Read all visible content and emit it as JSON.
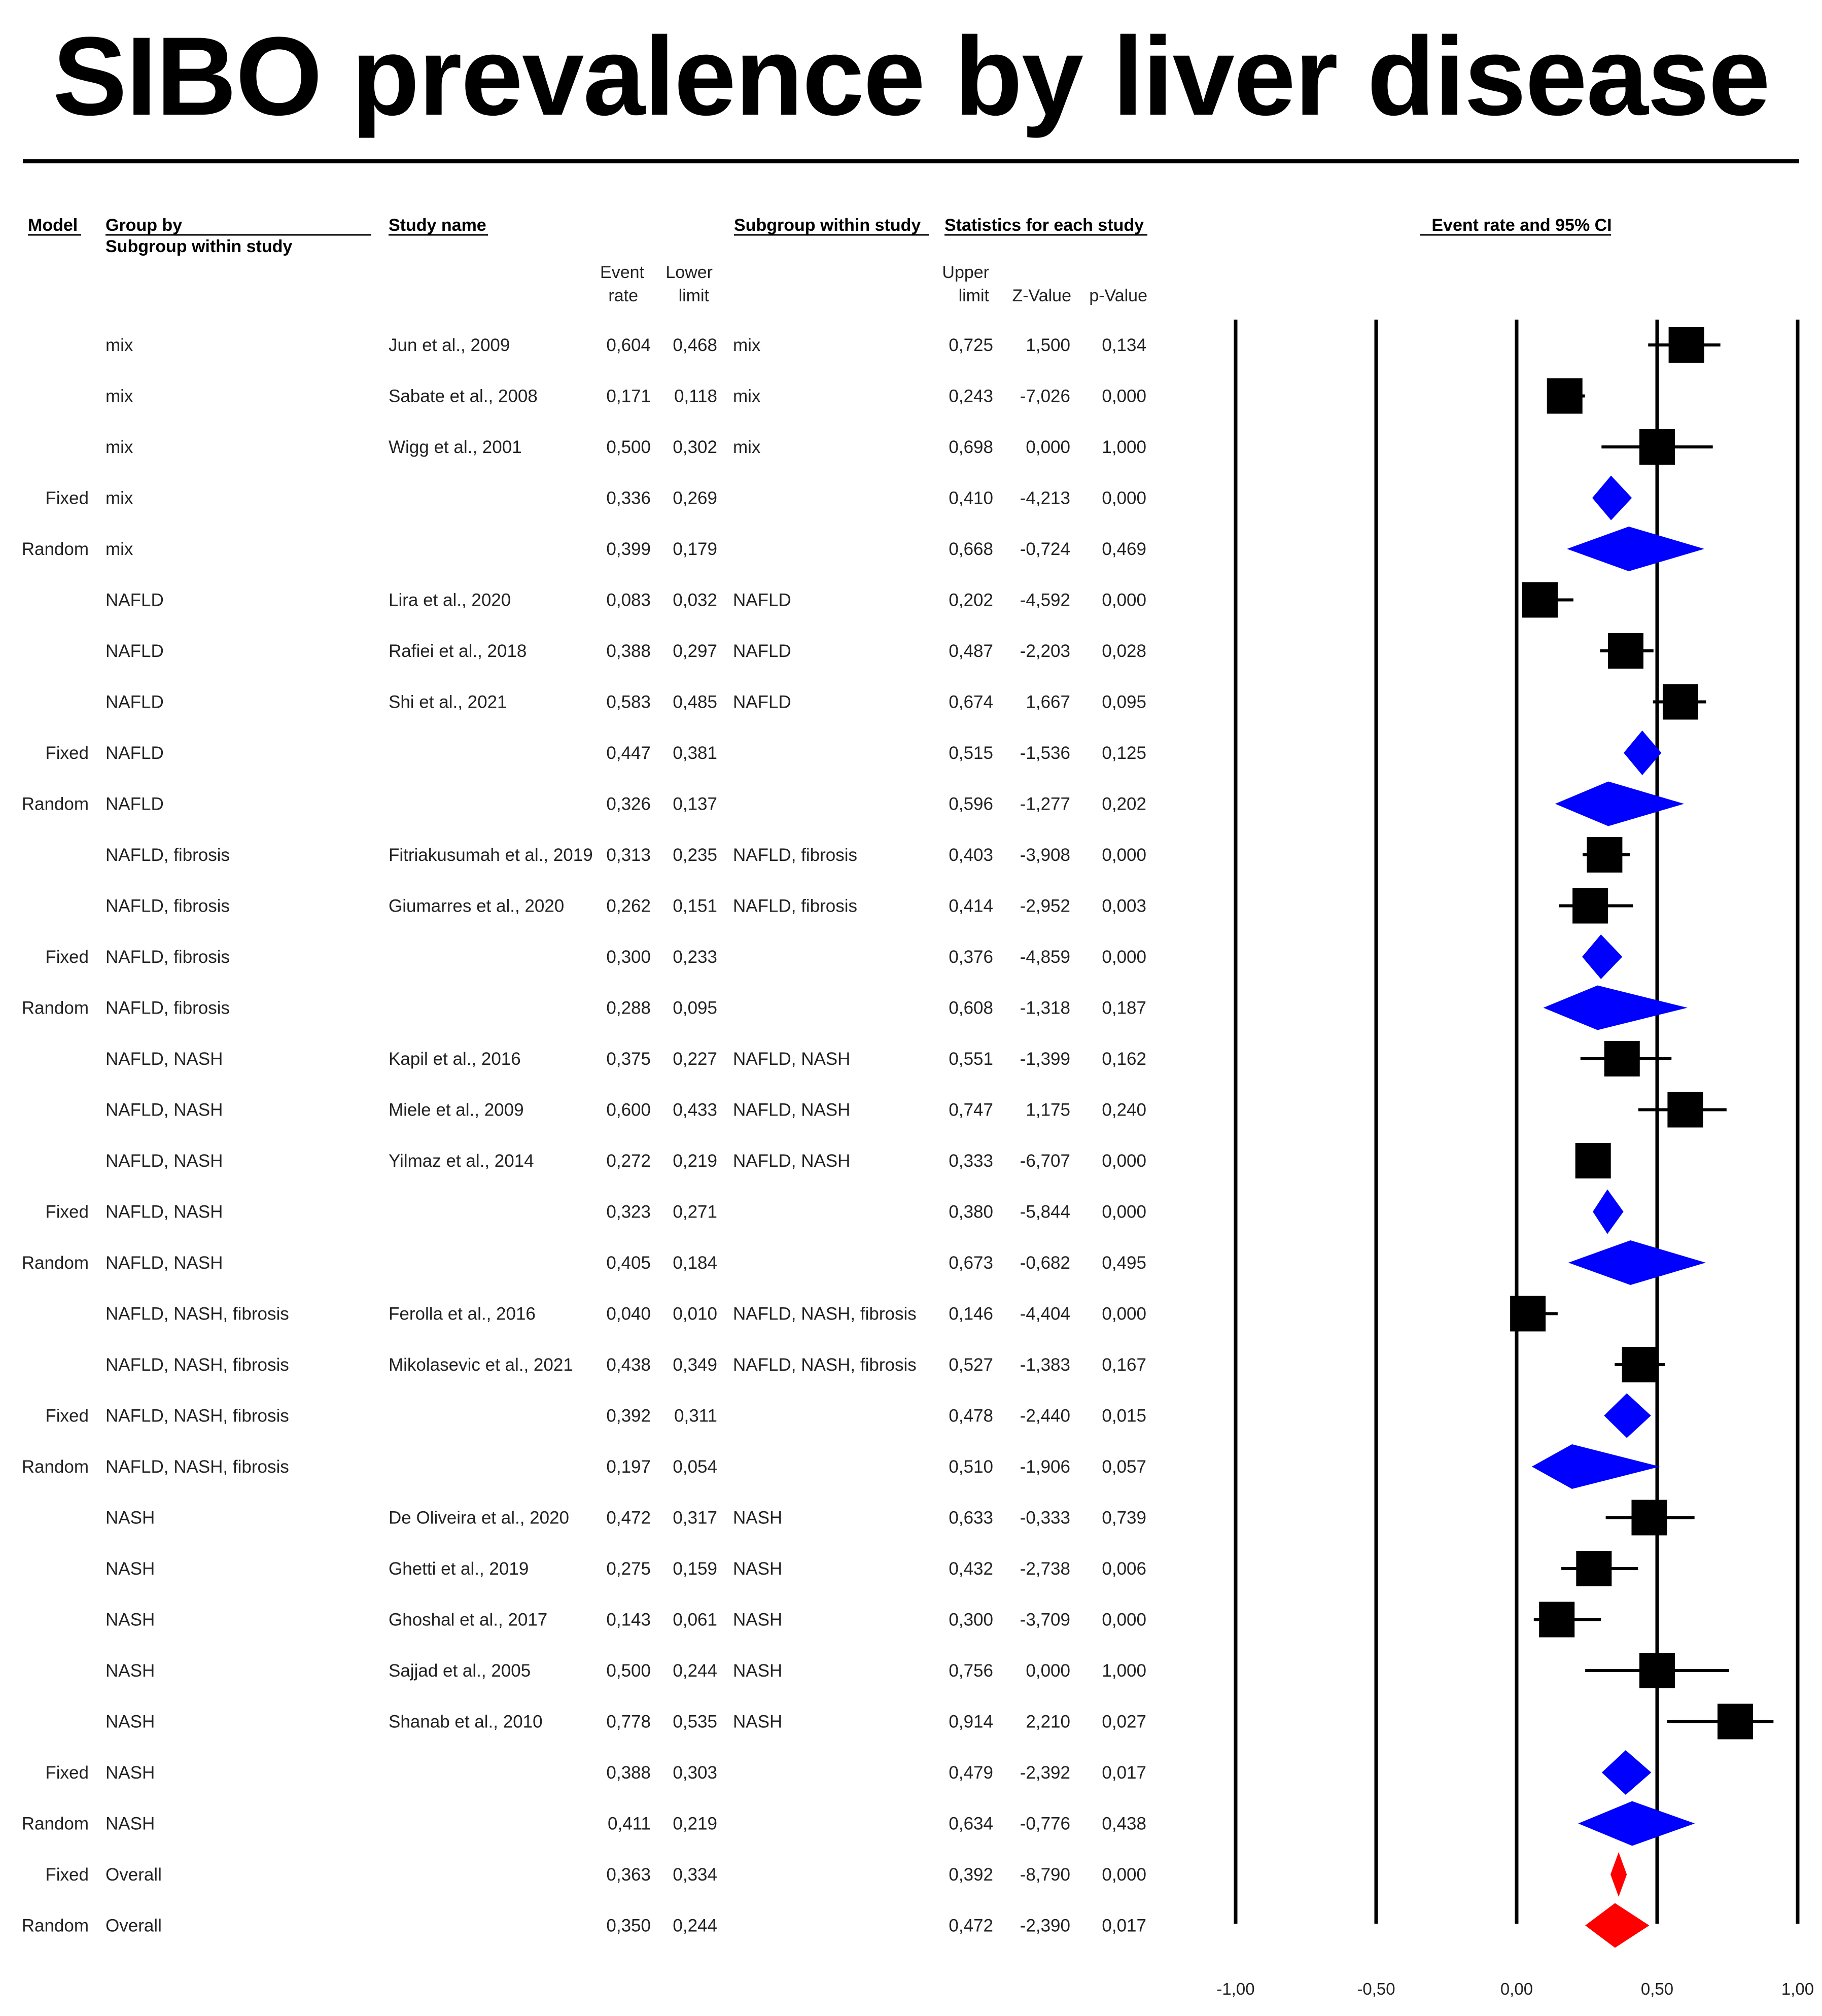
{
  "title": "SIBO prevalence by liver disease",
  "headers": {
    "model": "Model",
    "group_by": "Group by",
    "subgroup_within_study": "Subgroup within study",
    "study_name": "Study name",
    "subgroup_col": "Subgroup within study",
    "statistics": "Statistics for each study",
    "event_rate_ci": "Event rate and 95% CI",
    "event_1": "Event",
    "event_2": "rate",
    "lower_1": "Lower",
    "lower_2": "limit",
    "upper_1": "Upper",
    "upper_2": "limit",
    "zvalue": "Z-Value",
    "pvalue": "p-Value"
  },
  "colors": {
    "study": "#000000",
    "subgroup": "#0000ff",
    "overall": "#ff0000",
    "text": "#222222"
  },
  "chart_data": {
    "type": "forest",
    "title": "SIBO prevalence by liver disease",
    "xlabel": "Event rate and 95% CI",
    "xlim": [
      -1.0,
      1.0
    ],
    "ticks": [
      -1.0,
      -0.5,
      0.0,
      0.5,
      1.0
    ],
    "tick_labels": [
      "-1,00",
      "-0,50",
      "0,00",
      "0,50",
      "1,00"
    ],
    "rows": [
      {
        "model": "",
        "group": "mix",
        "study": "Jun et al., 2009",
        "event": "0,604",
        "lower": "0,468",
        "subgroup": "mix",
        "upper": "0,725",
        "z": "1,500",
        "p": "0,134",
        "kind": "study",
        "est": 0.604,
        "lo": 0.468,
        "hi": 0.725
      },
      {
        "model": "",
        "group": "mix",
        "study": "Sabate et al., 2008",
        "event": "0,171",
        "lower": "0,118",
        "subgroup": "mix",
        "upper": "0,243",
        "z": "-7,026",
        "p": "0,000",
        "kind": "study",
        "est": 0.171,
        "lo": 0.118,
        "hi": 0.243
      },
      {
        "model": "",
        "group": "mix",
        "study": "Wigg et al., 2001",
        "event": "0,500",
        "lower": "0,302",
        "subgroup": "mix",
        "upper": "0,698",
        "z": "0,000",
        "p": "1,000",
        "kind": "study",
        "est": 0.5,
        "lo": 0.302,
        "hi": 0.698
      },
      {
        "model": "Fixed",
        "group": "mix",
        "study": "",
        "event": "0,336",
        "lower": "0,269",
        "subgroup": "",
        "upper": "0,410",
        "z": "-4,213",
        "p": "0,000",
        "kind": "pooled",
        "est": 0.336,
        "lo": 0.269,
        "hi": 0.41
      },
      {
        "model": "Random",
        "group": "mix",
        "study": "",
        "event": "0,399",
        "lower": "0,179",
        "subgroup": "",
        "upper": "0,668",
        "z": "-0,724",
        "p": "0,469",
        "kind": "pooled",
        "est": 0.399,
        "lo": 0.179,
        "hi": 0.668
      },
      {
        "model": "",
        "group": "NAFLD",
        "study": "Lira et al., 2020",
        "event": "0,083",
        "lower": "0,032",
        "subgroup": "NAFLD",
        "upper": "0,202",
        "z": "-4,592",
        "p": "0,000",
        "kind": "study",
        "est": 0.083,
        "lo": 0.032,
        "hi": 0.202
      },
      {
        "model": "",
        "group": "NAFLD",
        "study": "Rafiei et al., 2018",
        "event": "0,388",
        "lower": "0,297",
        "subgroup": "NAFLD",
        "upper": "0,487",
        "z": "-2,203",
        "p": "0,028",
        "kind": "study",
        "est": 0.388,
        "lo": 0.297,
        "hi": 0.487
      },
      {
        "model": "",
        "group": "NAFLD",
        "study": "Shi et al., 2021",
        "event": "0,583",
        "lower": "0,485",
        "subgroup": "NAFLD",
        "upper": "0,674",
        "z": "1,667",
        "p": "0,095",
        "kind": "study",
        "est": 0.583,
        "lo": 0.485,
        "hi": 0.674
      },
      {
        "model": "Fixed",
        "group": "NAFLD",
        "study": "",
        "event": "0,447",
        "lower": "0,381",
        "subgroup": "",
        "upper": "0,515",
        "z": "-1,536",
        "p": "0,125",
        "kind": "pooled",
        "est": 0.447,
        "lo": 0.381,
        "hi": 0.515
      },
      {
        "model": "Random",
        "group": "NAFLD",
        "study": "",
        "event": "0,326",
        "lower": "0,137",
        "subgroup": "",
        "upper": "0,596",
        "z": "-1,277",
        "p": "0,202",
        "kind": "pooled",
        "est": 0.326,
        "lo": 0.137,
        "hi": 0.596
      },
      {
        "model": "",
        "group": "NAFLD, fibrosis",
        "study": "Fitriakusumah et al., 2019",
        "event": "0,313",
        "lower": "0,235",
        "subgroup": "NAFLD, fibrosis",
        "upper": "0,403",
        "z": "-3,908",
        "p": "0,000",
        "kind": "study",
        "est": 0.313,
        "lo": 0.235,
        "hi": 0.403
      },
      {
        "model": "",
        "group": "NAFLD, fibrosis",
        "study": "Giumarres et al., 2020",
        "event": "0,262",
        "lower": "0,151",
        "subgroup": "NAFLD, fibrosis",
        "upper": "0,414",
        "z": "-2,952",
        "p": "0,003",
        "kind": "study",
        "est": 0.262,
        "lo": 0.151,
        "hi": 0.414
      },
      {
        "model": "Fixed",
        "group": "NAFLD, fibrosis",
        "study": "",
        "event": "0,300",
        "lower": "0,233",
        "subgroup": "",
        "upper": "0,376",
        "z": "-4,859",
        "p": "0,000",
        "kind": "pooled",
        "est": 0.3,
        "lo": 0.233,
        "hi": 0.376
      },
      {
        "model": "Random",
        "group": "NAFLD, fibrosis",
        "study": "",
        "event": "0,288",
        "lower": "0,095",
        "subgroup": "",
        "upper": "0,608",
        "z": "-1,318",
        "p": "0,187",
        "kind": "pooled",
        "est": 0.288,
        "lo": 0.095,
        "hi": 0.608
      },
      {
        "model": "",
        "group": "NAFLD, NASH",
        "study": "Kapil et al., 2016",
        "event": "0,375",
        "lower": "0,227",
        "subgroup": "NAFLD, NASH",
        "upper": "0,551",
        "z": "-1,399",
        "p": "0,162",
        "kind": "study",
        "est": 0.375,
        "lo": 0.227,
        "hi": 0.551
      },
      {
        "model": "",
        "group": "NAFLD, NASH",
        "study": "Miele et al., 2009",
        "event": "0,600",
        "lower": "0,433",
        "subgroup": "NAFLD, NASH",
        "upper": "0,747",
        "z": "1,175",
        "p": "0,240",
        "kind": "study",
        "est": 0.6,
        "lo": 0.433,
        "hi": 0.747
      },
      {
        "model": "",
        "group": "NAFLD, NASH",
        "study": "Yilmaz et al., 2014",
        "event": "0,272",
        "lower": "0,219",
        "subgroup": "NAFLD, NASH",
        "upper": "0,333",
        "z": "-6,707",
        "p": "0,000",
        "kind": "study",
        "est": 0.272,
        "lo": 0.219,
        "hi": 0.333
      },
      {
        "model": "Fixed",
        "group": "NAFLD, NASH",
        "study": "",
        "event": "0,323",
        "lower": "0,271",
        "subgroup": "",
        "upper": "0,380",
        "z": "-5,844",
        "p": "0,000",
        "kind": "pooled",
        "est": 0.323,
        "lo": 0.271,
        "hi": 0.38
      },
      {
        "model": "Random",
        "group": "NAFLD, NASH",
        "study": "",
        "event": "0,405",
        "lower": "0,184",
        "subgroup": "",
        "upper": "0,673",
        "z": "-0,682",
        "p": "0,495",
        "kind": "pooled",
        "est": 0.405,
        "lo": 0.184,
        "hi": 0.673
      },
      {
        "model": "",
        "group": "NAFLD, NASH, fibrosis",
        "study": "Ferolla et al., 2016",
        "event": "0,040",
        "lower": "0,010",
        "subgroup": "NAFLD, NASH, fibrosis",
        "upper": "0,146",
        "z": "-4,404",
        "p": "0,000",
        "kind": "study",
        "est": 0.04,
        "lo": 0.01,
        "hi": 0.146
      },
      {
        "model": "",
        "group": "NAFLD, NASH, fibrosis",
        "study": "Mikolasevic et al., 2021",
        "event": "0,438",
        "lower": "0,349",
        "subgroup": "NAFLD, NASH, fibrosis",
        "upper": "0,527",
        "z": "-1,383",
        "p": "0,167",
        "kind": "study",
        "est": 0.438,
        "lo": 0.349,
        "hi": 0.527
      },
      {
        "model": "Fixed",
        "group": "NAFLD, NASH, fibrosis",
        "study": "",
        "event": "0,392",
        "lower": "0,311",
        "subgroup": "",
        "upper": "0,478",
        "z": "-2,440",
        "p": "0,015",
        "kind": "pooled",
        "est": 0.392,
        "lo": 0.311,
        "hi": 0.478
      },
      {
        "model": "Random",
        "group": "NAFLD, NASH, fibrosis",
        "study": "",
        "event": "0,197",
        "lower": "0,054",
        "subgroup": "",
        "upper": "0,510",
        "z": "-1,906",
        "p": "0,057",
        "kind": "pooled",
        "est": 0.197,
        "lo": 0.054,
        "hi": 0.51
      },
      {
        "model": "",
        "group": "NASH",
        "study": "De Oliveira et al., 2020",
        "event": "0,472",
        "lower": "0,317",
        "subgroup": "NASH",
        "upper": "0,633",
        "z": "-0,333",
        "p": "0,739",
        "kind": "study",
        "est": 0.472,
        "lo": 0.317,
        "hi": 0.633
      },
      {
        "model": "",
        "group": "NASH",
        "study": "Ghetti et al., 2019",
        "event": "0,275",
        "lower": "0,159",
        "subgroup": "NASH",
        "upper": "0,432",
        "z": "-2,738",
        "p": "0,006",
        "kind": "study",
        "est": 0.275,
        "lo": 0.159,
        "hi": 0.432
      },
      {
        "model": "",
        "group": "NASH",
        "study": "Ghoshal et al., 2017",
        "event": "0,143",
        "lower": "0,061",
        "subgroup": "NASH",
        "upper": "0,300",
        "z": "-3,709",
        "p": "0,000",
        "kind": "study",
        "est": 0.143,
        "lo": 0.061,
        "hi": 0.3
      },
      {
        "model": "",
        "group": "NASH",
        "study": "Sajjad et al., 2005",
        "event": "0,500",
        "lower": "0,244",
        "subgroup": "NASH",
        "upper": "0,756",
        "z": "0,000",
        "p": "1,000",
        "kind": "study",
        "est": 0.5,
        "lo": 0.244,
        "hi": 0.756
      },
      {
        "model": "",
        "group": "NASH",
        "study": "Shanab et al., 2010",
        "event": "0,778",
        "lower": "0,535",
        "subgroup": "NASH",
        "upper": "0,914",
        "z": "2,210",
        "p": "0,027",
        "kind": "study",
        "est": 0.778,
        "lo": 0.535,
        "hi": 0.914
      },
      {
        "model": "Fixed",
        "group": "NASH",
        "study": "",
        "event": "0,388",
        "lower": "0,303",
        "subgroup": "",
        "upper": "0,479",
        "z": "-2,392",
        "p": "0,017",
        "kind": "pooled",
        "est": 0.388,
        "lo": 0.303,
        "hi": 0.479
      },
      {
        "model": "Random",
        "group": "NASH",
        "study": "",
        "event": "0,411",
        "lower": "0,219",
        "subgroup": "",
        "upper": "0,634",
        "z": "-0,776",
        "p": "0,438",
        "kind": "pooled",
        "est": 0.411,
        "lo": 0.219,
        "hi": 0.634
      },
      {
        "model": "Fixed",
        "group": "Overall",
        "study": "",
        "event": "0,363",
        "lower": "0,334",
        "subgroup": "",
        "upper": "0,392",
        "z": "-8,790",
        "p": "0,000",
        "kind": "overall",
        "est": 0.363,
        "lo": 0.334,
        "hi": 0.392
      },
      {
        "model": "Random",
        "group": "Overall",
        "study": "",
        "event": "0,350",
        "lower": "0,244",
        "subgroup": "",
        "upper": "0,472",
        "z": "-2,390",
        "p": "0,017",
        "kind": "overall",
        "est": 0.35,
        "lo": 0.244,
        "hi": 0.472
      }
    ]
  }
}
